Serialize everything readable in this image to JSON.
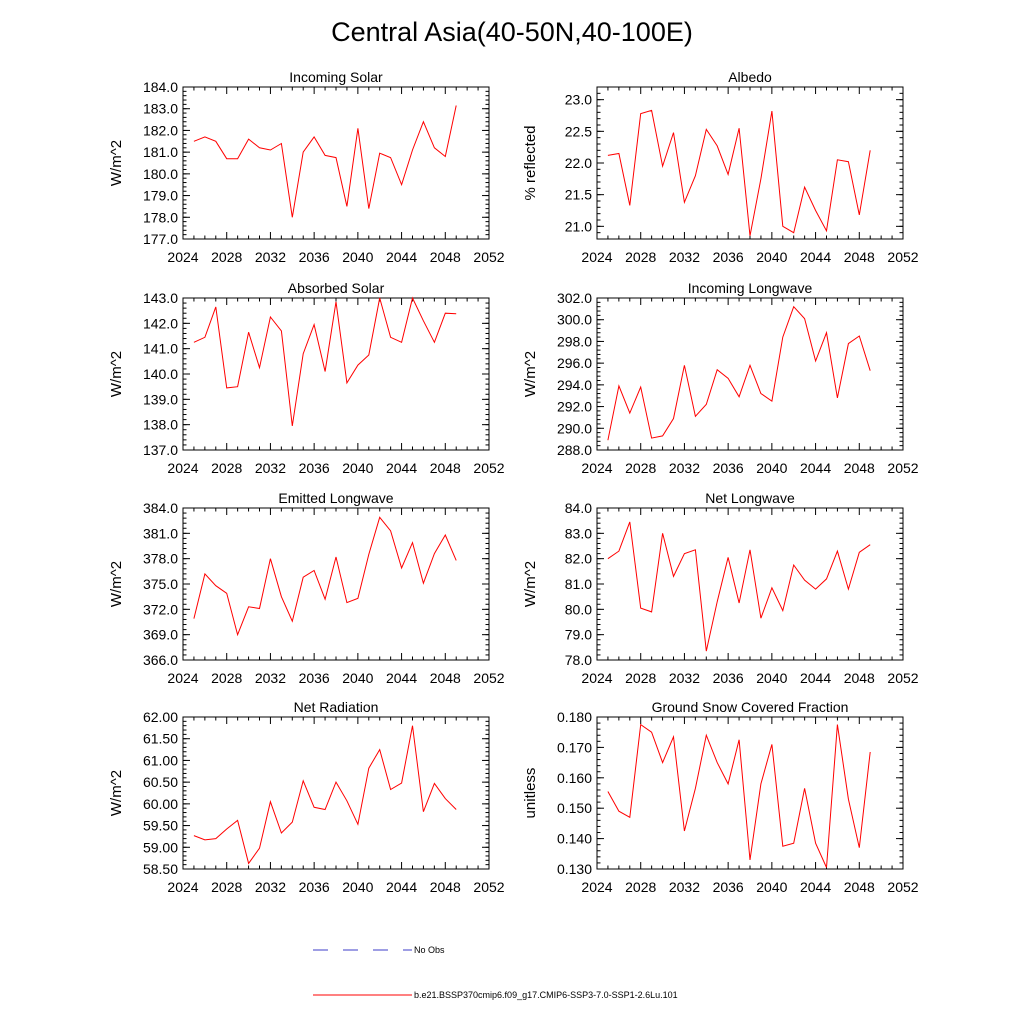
{
  "figure": {
    "title": "Central Asia(40-50N,40-100E)",
    "colors": {
      "model_line": "#ff0000",
      "obs_line": "#3c3cc8",
      "axes": "#000000"
    }
  },
  "legend": {
    "obs_label": "No Obs",
    "model_label": "b.e21.BSSP370cmip6.f09_g17.CMIP6-SSP3-7.0-SSP1-2.6Lu.101"
  },
  "chart_data": [
    {
      "type": "line",
      "title": "Incoming Solar",
      "ylabel": "W/m^2",
      "xlim": [
        2024,
        2052
      ],
      "xticks": [
        2024,
        2028,
        2032,
        2036,
        2040,
        2044,
        2048,
        2052
      ],
      "ylim": [
        177,
        184
      ],
      "yticks": [
        "177.0",
        "178.0",
        "179.0",
        "180.0",
        "181.0",
        "182.0",
        "183.0",
        "184.0"
      ],
      "yminor": 0.2,
      "x": [
        2025,
        2026,
        2027,
        2028,
        2029,
        2030,
        2031,
        2032,
        2033,
        2034,
        2035,
        2036,
        2037,
        2038,
        2039,
        2040,
        2041,
        2042,
        2043,
        2044,
        2045,
        2046,
        2047,
        2048,
        2049
      ],
      "series": [
        {
          "values": [
            181.5,
            181.7,
            181.5,
            180.7,
            180.7,
            181.6,
            181.2,
            181.1,
            181.4,
            178.0,
            181.0,
            181.7,
            180.85,
            180.75,
            178.5,
            182.1,
            178.4,
            180.95,
            180.75,
            179.5,
            181.1,
            182.4,
            181.2,
            180.8,
            183.15
          ]
        }
      ]
    },
    {
      "type": "line",
      "title": "Albedo",
      "ylabel": "% reflected",
      "xlim": [
        2024,
        2052
      ],
      "xticks": [
        2024,
        2028,
        2032,
        2036,
        2040,
        2044,
        2048,
        2052
      ],
      "ylim": [
        20.8,
        23.2
      ],
      "yticks": [
        "21.0",
        "21.5",
        "22.0",
        "22.5",
        "23.0"
      ],
      "yminor": 0.1,
      "x": [
        2025,
        2026,
        2027,
        2028,
        2029,
        2030,
        2031,
        2032,
        2033,
        2034,
        2035,
        2036,
        2037,
        2038,
        2039,
        2040,
        2041,
        2042,
        2043,
        2044,
        2045,
        2046,
        2047,
        2048,
        2049
      ],
      "series": [
        {
          "values": [
            22.12,
            22.15,
            21.33,
            22.78,
            22.83,
            21.95,
            22.48,
            21.38,
            21.8,
            22.53,
            22.27,
            21.82,
            22.55,
            20.85,
            21.75,
            22.82,
            21.0,
            20.9,
            21.62,
            21.25,
            20.93,
            22.05,
            22.02,
            21.18,
            22.2
          ]
        }
      ]
    },
    {
      "type": "line",
      "title": "Absorbed Solar",
      "ylabel": "W/m^2",
      "xlim": [
        2024,
        2052
      ],
      "xticks": [
        2024,
        2028,
        2032,
        2036,
        2040,
        2044,
        2048,
        2052
      ],
      "ylim": [
        137,
        143
      ],
      "yticks": [
        "137.0",
        "138.0",
        "139.0",
        "140.0",
        "141.0",
        "142.0",
        "143.0"
      ],
      "yminor": 0.2,
      "x": [
        2025,
        2026,
        2027,
        2028,
        2029,
        2030,
        2031,
        2032,
        2033,
        2034,
        2035,
        2036,
        2037,
        2038,
        2039,
        2040,
        2041,
        2042,
        2043,
        2044,
        2045,
        2046,
        2047,
        2048,
        2049
      ],
      "series": [
        {
          "values": [
            141.25,
            141.45,
            142.65,
            139.45,
            139.5,
            141.65,
            140.25,
            142.25,
            141.7,
            137.95,
            140.8,
            141.95,
            140.1,
            142.85,
            139.65,
            140.35,
            140.75,
            143.0,
            141.45,
            141.25,
            143.0,
            142.1,
            141.25,
            142.4,
            142.38
          ]
        }
      ]
    },
    {
      "type": "line",
      "title": "Incoming Longwave",
      "ylabel": "W/m^2",
      "xlim": [
        2024,
        2052
      ],
      "xticks": [
        2024,
        2028,
        2032,
        2036,
        2040,
        2044,
        2048,
        2052
      ],
      "ylim": [
        288,
        302
      ],
      "yticks": [
        "288.0",
        "290.0",
        "292.0",
        "294.0",
        "296.0",
        "298.0",
        "300.0",
        "302.0"
      ],
      "yminor": 0.4,
      "x": [
        2025,
        2026,
        2027,
        2028,
        2029,
        2030,
        2031,
        2032,
        2033,
        2034,
        2035,
        2036,
        2037,
        2038,
        2039,
        2040,
        2041,
        2042,
        2043,
        2044,
        2045,
        2046,
        2047,
        2048,
        2049
      ],
      "series": [
        {
          "values": [
            288.9,
            293.9,
            291.4,
            293.8,
            289.1,
            289.3,
            290.9,
            295.8,
            291.1,
            292.2,
            295.4,
            294.6,
            292.9,
            295.8,
            293.2,
            292.5,
            298.4,
            301.2,
            300.1,
            296.2,
            298.8,
            292.8,
            297.8,
            298.5,
            295.3
          ]
        }
      ]
    },
    {
      "type": "line",
      "title": "Emitted Longwave",
      "ylabel": "W/m^2",
      "xlim": [
        2024,
        2052
      ],
      "xticks": [
        2024,
        2028,
        2032,
        2036,
        2040,
        2044,
        2048,
        2052
      ],
      "ylim": [
        366,
        384
      ],
      "yticks": [
        "366.0",
        "369.0",
        "372.0",
        "375.0",
        "378.0",
        "381.0",
        "384.0"
      ],
      "yminor": 0.6,
      "x": [
        2025,
        2026,
        2027,
        2028,
        2029,
        2030,
        2031,
        2032,
        2033,
        2034,
        2035,
        2036,
        2037,
        2038,
        2039,
        2040,
        2041,
        2042,
        2043,
        2044,
        2045,
        2046,
        2047,
        2048,
        2049
      ],
      "series": [
        {
          "values": [
            370.9,
            376.2,
            374.8,
            373.9,
            369.0,
            372.3,
            372.1,
            378.0,
            373.5,
            370.6,
            375.8,
            376.6,
            373.2,
            378.2,
            372.8,
            373.3,
            378.5,
            382.9,
            381.3,
            376.9,
            379.9,
            375.1,
            378.6,
            380.8,
            377.8
          ]
        }
      ]
    },
    {
      "type": "line",
      "title": "Net Longwave",
      "ylabel": "W/m^2",
      "xlim": [
        2024,
        2052
      ],
      "xticks": [
        2024,
        2028,
        2032,
        2036,
        2040,
        2044,
        2048,
        2052
      ],
      "ylim": [
        78,
        84
      ],
      "yticks": [
        "78.0",
        "79.0",
        "80.0",
        "81.0",
        "82.0",
        "83.0",
        "84.0"
      ],
      "yminor": 0.2,
      "x": [
        2025,
        2026,
        2027,
        2028,
        2029,
        2030,
        2031,
        2032,
        2033,
        2034,
        2035,
        2036,
        2037,
        2038,
        2039,
        2040,
        2041,
        2042,
        2043,
        2044,
        2045,
        2046,
        2047,
        2048,
        2049
      ],
      "series": [
        {
          "values": [
            82.0,
            82.3,
            83.45,
            80.05,
            79.9,
            83.0,
            81.3,
            82.2,
            82.35,
            78.35,
            80.3,
            82.05,
            80.25,
            82.35,
            79.65,
            80.85,
            79.95,
            81.75,
            81.15,
            80.8,
            81.2,
            82.3,
            80.8,
            82.25,
            82.55
          ]
        }
      ]
    },
    {
      "type": "line",
      "title": "Net Radiation",
      "ylabel": "W/m^2",
      "xlim": [
        2024,
        2052
      ],
      "xticks": [
        2024,
        2028,
        2032,
        2036,
        2040,
        2044,
        2048,
        2052
      ],
      "ylim": [
        58.5,
        62.0
      ],
      "yticks": [
        "58.50",
        "59.00",
        "59.50",
        "60.00",
        "60.50",
        "61.00",
        "61.50",
        "62.00"
      ],
      "yminor": 0.1,
      "x": [
        2025,
        2026,
        2027,
        2028,
        2029,
        2030,
        2031,
        2032,
        2033,
        2034,
        2035,
        2036,
        2037,
        2038,
        2039,
        2040,
        2041,
        2042,
        2043,
        2044,
        2045,
        2046,
        2047,
        2048,
        2049
      ],
      "series": [
        {
          "values": [
            59.27,
            59.17,
            59.2,
            59.42,
            59.62,
            58.63,
            58.98,
            60.05,
            59.33,
            59.58,
            60.53,
            59.92,
            59.87,
            60.5,
            60.07,
            59.53,
            60.82,
            61.25,
            60.33,
            60.48,
            61.8,
            59.82,
            60.47,
            60.12,
            59.87
          ]
        }
      ]
    },
    {
      "type": "line",
      "title": "Ground Snow Covered Fraction",
      "ylabel": "unitless",
      "xlim": [
        2024,
        2052
      ],
      "xticks": [
        2024,
        2028,
        2032,
        2036,
        2040,
        2044,
        2048,
        2052
      ],
      "ylim": [
        0.13,
        0.18
      ],
      "yticks": [
        "0.130",
        "0.140",
        "0.150",
        "0.160",
        "0.170",
        "0.180"
      ],
      "yminor": 0.002,
      "x": [
        2025,
        2026,
        2027,
        2028,
        2029,
        2030,
        2031,
        2032,
        2033,
        2034,
        2035,
        2036,
        2037,
        2038,
        2039,
        2040,
        2041,
        2042,
        2043,
        2044,
        2045,
        2046,
        2047,
        2048,
        2049
      ],
      "series": [
        {
          "values": [
            0.1555,
            0.149,
            0.147,
            0.1775,
            0.175,
            0.165,
            0.1735,
            0.1425,
            0.1565,
            0.174,
            0.165,
            0.158,
            0.1725,
            0.133,
            0.158,
            0.171,
            0.1375,
            0.1385,
            0.1565,
            0.1385,
            0.1305,
            0.1775,
            0.153,
            0.137,
            0.1685
          ]
        }
      ]
    }
  ]
}
